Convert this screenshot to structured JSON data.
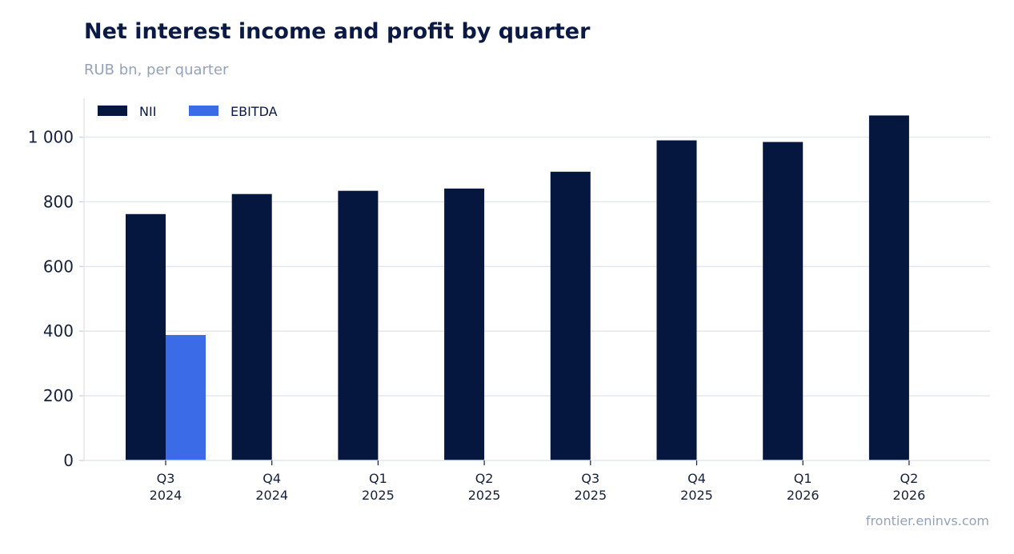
{
  "header": {
    "title": "Net interest income and profit by quarter",
    "subtitle": "RUB bn, per quarter"
  },
  "footer": {
    "source": "frontier.eninvs.com"
  },
  "chart_data": {
    "type": "bar",
    "title": "Net interest income and profit by quarter",
    "subtitle": "RUB bn, per quarter",
    "categories": [
      [
        "Q3",
        "2024"
      ],
      [
        "Q4",
        "2024"
      ],
      [
        "Q1",
        "2025"
      ],
      [
        "Q2",
        "2025"
      ],
      [
        "Q3",
        "2025"
      ],
      [
        "Q4",
        "2025"
      ],
      [
        "Q1",
        "2026"
      ],
      [
        "Q2",
        "2026"
      ]
    ],
    "series": [
      {
        "name": "NII",
        "color": "#05163f",
        "values": [
          762,
          824,
          834,
          841,
          893,
          990,
          985,
          1067
        ]
      },
      {
        "name": "EBITDA",
        "color": "#3c6be8",
        "values": [
          388,
          null,
          null,
          null,
          null,
          null,
          null,
          null
        ]
      }
    ],
    "yticks": [
      0,
      200,
      400,
      600,
      800,
      1000
    ],
    "ytick_labels": [
      "0",
      "200",
      "400",
      "600",
      "800",
      "1 000"
    ],
    "ylim": [
      0,
      1120
    ],
    "grid": true,
    "legend_position": "top-left"
  }
}
